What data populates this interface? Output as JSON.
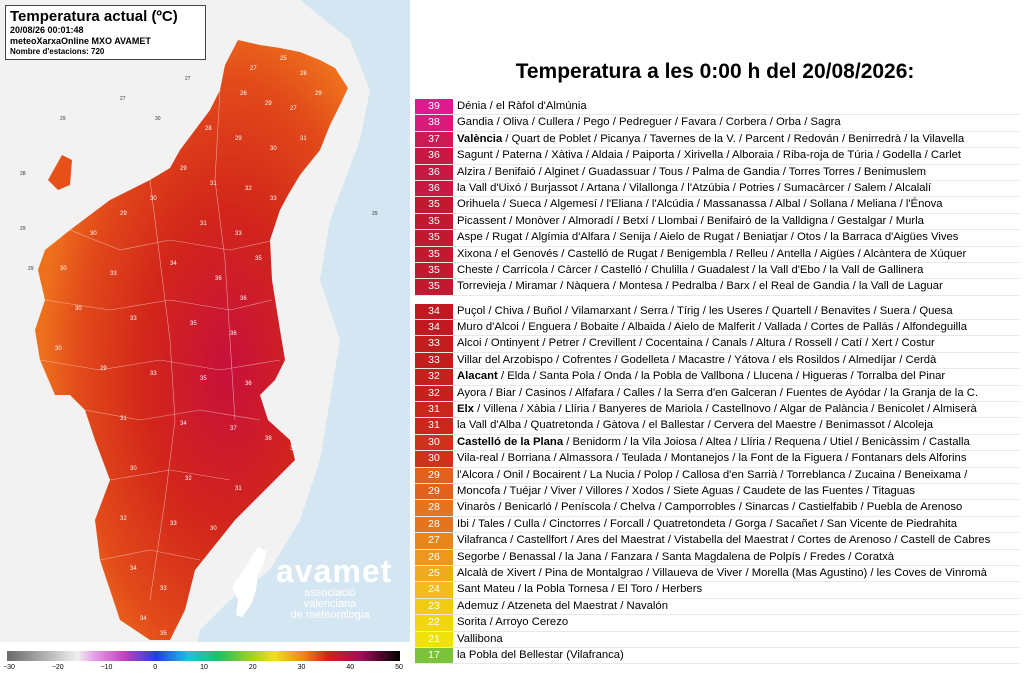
{
  "info": {
    "title": "Temperatura actual (ºC)",
    "datetime": "20/08/26 00:01:48",
    "source": "meteoXarxaOnline MXO AVAMET",
    "stations": "Nombre d'estacions: 720"
  },
  "logo": {
    "name": "avamet",
    "sub1": "associació valenciana",
    "sub2": "de meteorologia"
  },
  "scale": {
    "ticks": [
      "−30",
      "−20",
      "−10",
      "0",
      "10",
      "20",
      "30",
      "40",
      "50"
    ]
  },
  "colors": {
    "sea": "#cfe3f0",
    "land_outside": "#f2f2f2",
    "hot": "#c8102e",
    "warm": "#e8401a",
    "mild": "#f08a1a"
  },
  "table_title": "Temperatura a les 0:00 h del 20/08/2026:",
  "rows": [
    {
      "t": "39",
      "c": "#e0198c",
      "towns": "Dénia / el Ràfol d'Almúnia"
    },
    {
      "t": "38",
      "c": "#d81b7a",
      "towns": "Gandia / Oliva / Cullera / Pego / Pedreguer / Favara / Corbera / Orba / Sagra"
    },
    {
      "t": "37",
      "c": "#cc1a55",
      "bold": "València",
      "towns": " / Quart de Poblet / Picanya / Tavernes de la V. / Parcent / Redován / Benirredrà / la Vilavella"
    },
    {
      "t": "36",
      "c": "#c61a45",
      "towns": "Sagunt / Paterna / Xàtiva / Aldaia / Paiporta / Xirivella / Alboraia / Riba-roja de Túria / Godella / Carlet"
    },
    {
      "t": "36",
      "c": "#c61a45",
      "towns": "Alzira / Benifaió / Alginet / Guadassuar / Tous / Palma de Gandia / Torres Torres / Benimuslem"
    },
    {
      "t": "36",
      "c": "#c61a45",
      "towns": "la Vall d'Uixó / Burjassot / Artana / Vilallonga / l'Atzúbia / Potries / Sumacàrcer / Salem / Alcalalí"
    },
    {
      "t": "35",
      "c": "#c01a30",
      "towns": "Orihuela / Sueca / Algemesí / l'Eliana / l'Alcúdia / Massanassa / Albal / Sollana / Meliana / l'Énova"
    },
    {
      "t": "35",
      "c": "#c01a30",
      "towns": "Picassent / Monòver / Almoradí / Betxí / Llombai / Benifairó de la Valldigna / Gestalgar / Murla"
    },
    {
      "t": "35",
      "c": "#c01a30",
      "towns": "Aspe / Rugat / Algímia d'Alfara / Senija / Aielo de Rugat / Beniatjar / Otos / la Barraca d'Aigües Vives"
    },
    {
      "t": "35",
      "c": "#c01a30",
      "towns": "Xixona / el Genovés / Castelló de Rugat / Benigembla / Relleu / Antella / Aigües / Alcàntera de Xúquer"
    },
    {
      "t": "35",
      "c": "#c01a30",
      "towns": "Cheste / Carrícola / Càrcer / Castelló / Chulilla / Guadalest / la Vall d'Ebo / la Vall de Gallinera"
    },
    {
      "t": "35",
      "c": "#c01a30",
      "towns": "Torrevieja / Miramar / Nàquera / Montesa / Pedralba / Barx / el Real de Gandia / la Vall de Laguar"
    },
    {
      "gap": true
    },
    {
      "t": "34",
      "c": "#bf1a22",
      "towns": "Puçol / Chiva / Buñol / Vilamarxant / Serra / Tírig / les Useres / Quartell / Benavites / Suera / Quesa"
    },
    {
      "t": "34",
      "c": "#bf1a22",
      "towns": "Muro d'Alcoi / Enguera / Bobaite / Albaida / Aielo de Malferit / Vallada / Cortes de Pallás / Alfondeguilla"
    },
    {
      "t": "33",
      "c": "#c11e1e",
      "towns": "Alcoi / Ontinyent / Petrer / Crevillent / Cocentaina / Canals / Altura / Rossell / Catí / Xert / Costur"
    },
    {
      "t": "33",
      "c": "#c11e1e",
      "towns": "Villar del Arzobispo / Cofrentes / Godelleta / Macastre / Yátova / els Rosildos / Almedíjar / Cerdà"
    },
    {
      "t": "32",
      "c": "#c4221c",
      "bold": "Alacant",
      "towns": " / Elda / Santa Pola / Onda / la Pobla de Vallbona / Llucena / Higueras / Torralba del Pinar"
    },
    {
      "t": "32",
      "c": "#c4221c",
      "towns": "Ayora / Biar / Casinos / Alfafara / Calles / la Serra d'en Galceran / Fuentes de Ayódar / la Granja de la C."
    },
    {
      "t": "31",
      "c": "#c8281c",
      "bold": "Elx",
      "towns": " / Villena / Xàbia / Llíria / Banyeres de Mariola / Castellnovo / Algar de Palància / Benicolet / Almiserà"
    },
    {
      "t": "31",
      "c": "#c8281c",
      "towns": "la Vall d'Alba / Quatretonda / Gàtova / el Ballestar / Cervera del Maestre / Benimassot / Alcoleja"
    },
    {
      "t": "30",
      "c": "#cf321c",
      "bold": "Castelló de la Plana",
      "towns": " / Benidorm / la Vila Joiosa / Altea / Llíria / Requena / Utiel / Benicàssim / Castalla"
    },
    {
      "t": "30",
      "c": "#cf321c",
      "towns": "Vila-real / Borriana / Almassora / Teulada / Montanejos / la Font de la Figuera / Fontanars dels Alforins"
    },
    {
      "t": "29",
      "c": "#e0621e",
      "towns": "l'Alcora / Onil / Bocairent / La Nucia / Polop / Callosa d'en Sarrià / Torreblanca / Zucaina / Beneixama /"
    },
    {
      "t": "29",
      "c": "#e0621e",
      "towns": "Moncofa / Tuéjar / Viver / Villores / Xodos / Siete Aguas / Caudete de las Fuentes / Titaguas"
    },
    {
      "t": "28",
      "c": "#e4741e",
      "towns": "Vinaròs / Benicarló / Peníscola / Chelva / Camporrobles / Sinarcas / Castielfabib / Puebla de Arenoso"
    },
    {
      "t": "28",
      "c": "#e4741e",
      "towns": "Ibi / Tales / Culla / Cinctorres / Forcall / Quatretondeta / Gorga / Sacañet / San Vicente de Piedrahita"
    },
    {
      "t": "27",
      "c": "#e8861e",
      "towns": "Vilafranca / Castellfort / Ares del Maestrat / Vistabella del Maestrat / Cortes de Arenoso / Castell de Cabres"
    },
    {
      "t": "26",
      "c": "#ec981e",
      "towns": "Segorbe / Benassal / la Jana / Fanzara / Santa Magdalena de Polpís / Fredes / Coratxà"
    },
    {
      "t": "25",
      "c": "#f0aa1e",
      "towns": "Alcalà de Xivert / Pina de Montalgrao / Villaueva de Viver / Morella (Mas Agustino) / les Coves de Vinromà"
    },
    {
      "t": "24",
      "c": "#f2bc1a",
      "towns": "Sant Mateu / la Pobla Tornesa / El Toro / Herbers"
    },
    {
      "t": "23",
      "c": "#f2cc12",
      "towns": "Ademuz / Atzeneta del Maestrat / Navalón"
    },
    {
      "t": "22",
      "c": "#f0d80c",
      "towns": "Sorita / Arroyo Cerezo"
    },
    {
      "t": "21",
      "c": "#eee20a",
      "towns": "Vallibona"
    },
    {
      "t": "17",
      "c": "#7cc23a",
      "towns": "la Pobla del Bellestar (Vilafranca)"
    }
  ]
}
